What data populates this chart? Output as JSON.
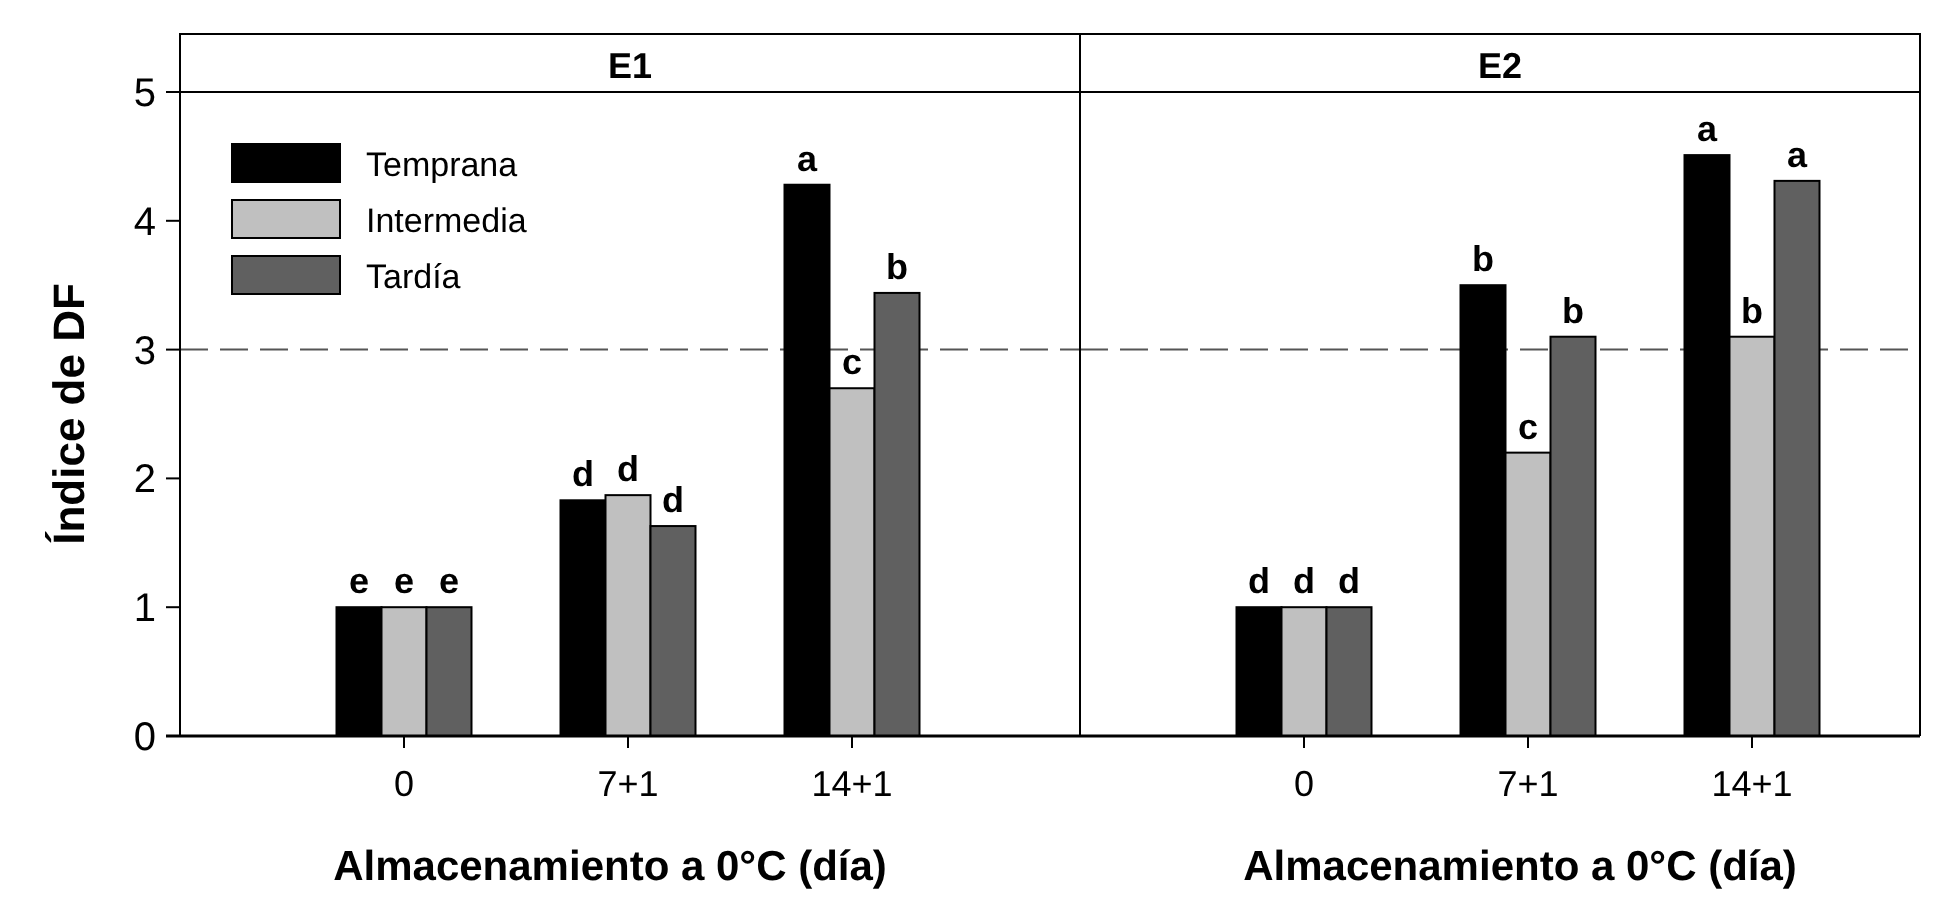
{
  "chart_data": [
    {
      "type": "bar",
      "title": "E1",
      "categories": [
        "0",
        "7+1",
        "14+1"
      ],
      "xlabel": "Almacenamiento a 0°C (día)",
      "ylabel": "Índice de DF",
      "ylim": [
        0,
        5
      ],
      "yticks": [
        0,
        1,
        2,
        3,
        4,
        5
      ],
      "legend": "top left",
      "series": [
        {
          "name": "Temprana",
          "color": "#000000",
          "values": [
            1,
            1.83,
            4.28
          ],
          "value_labels": [
            "e",
            "d",
            "a"
          ]
        },
        {
          "name": "Intermedia",
          "color": "#c0c0c0",
          "values": [
            1,
            1.87,
            2.7
          ],
          "value_labels": [
            "e",
            "d",
            "c"
          ]
        },
        {
          "name": "Tardía",
          "color": "#606060",
          "values": [
            1,
            1.63,
            3.44
          ],
          "value_labels": [
            "e",
            "d",
            "b"
          ]
        }
      ],
      "ref_lines": [
        {
          "axis": "y",
          "value": 3,
          "line_style": "dashed",
          "color": "#555555"
        }
      ]
    },
    {
      "type": "bar",
      "title": "E2",
      "categories": [
        "0",
        "7+1",
        "14+1"
      ],
      "xlabel": "Almacenamiento a 0°C (día)",
      "ylim": [
        0,
        5
      ],
      "tick_labels": "x",
      "series": [
        {
          "color": "#000000",
          "values": [
            1,
            3.5,
            4.51
          ],
          "value_labels": [
            "d",
            "b",
            "a"
          ]
        },
        {
          "color": "#c0c0c0",
          "values": [
            1,
            2.2,
            3.1
          ],
          "value_labels": [
            "d",
            "c",
            "b"
          ]
        },
        {
          "color": "#606060",
          "values": [
            1,
            3.1,
            4.31
          ],
          "value_labels": [
            "d",
            "b",
            "a"
          ]
        }
      ],
      "ref_lines": [
        {
          "axis": "y",
          "value": 3,
          "line_style": "dashed",
          "color": "#555555"
        }
      ]
    }
  ]
}
